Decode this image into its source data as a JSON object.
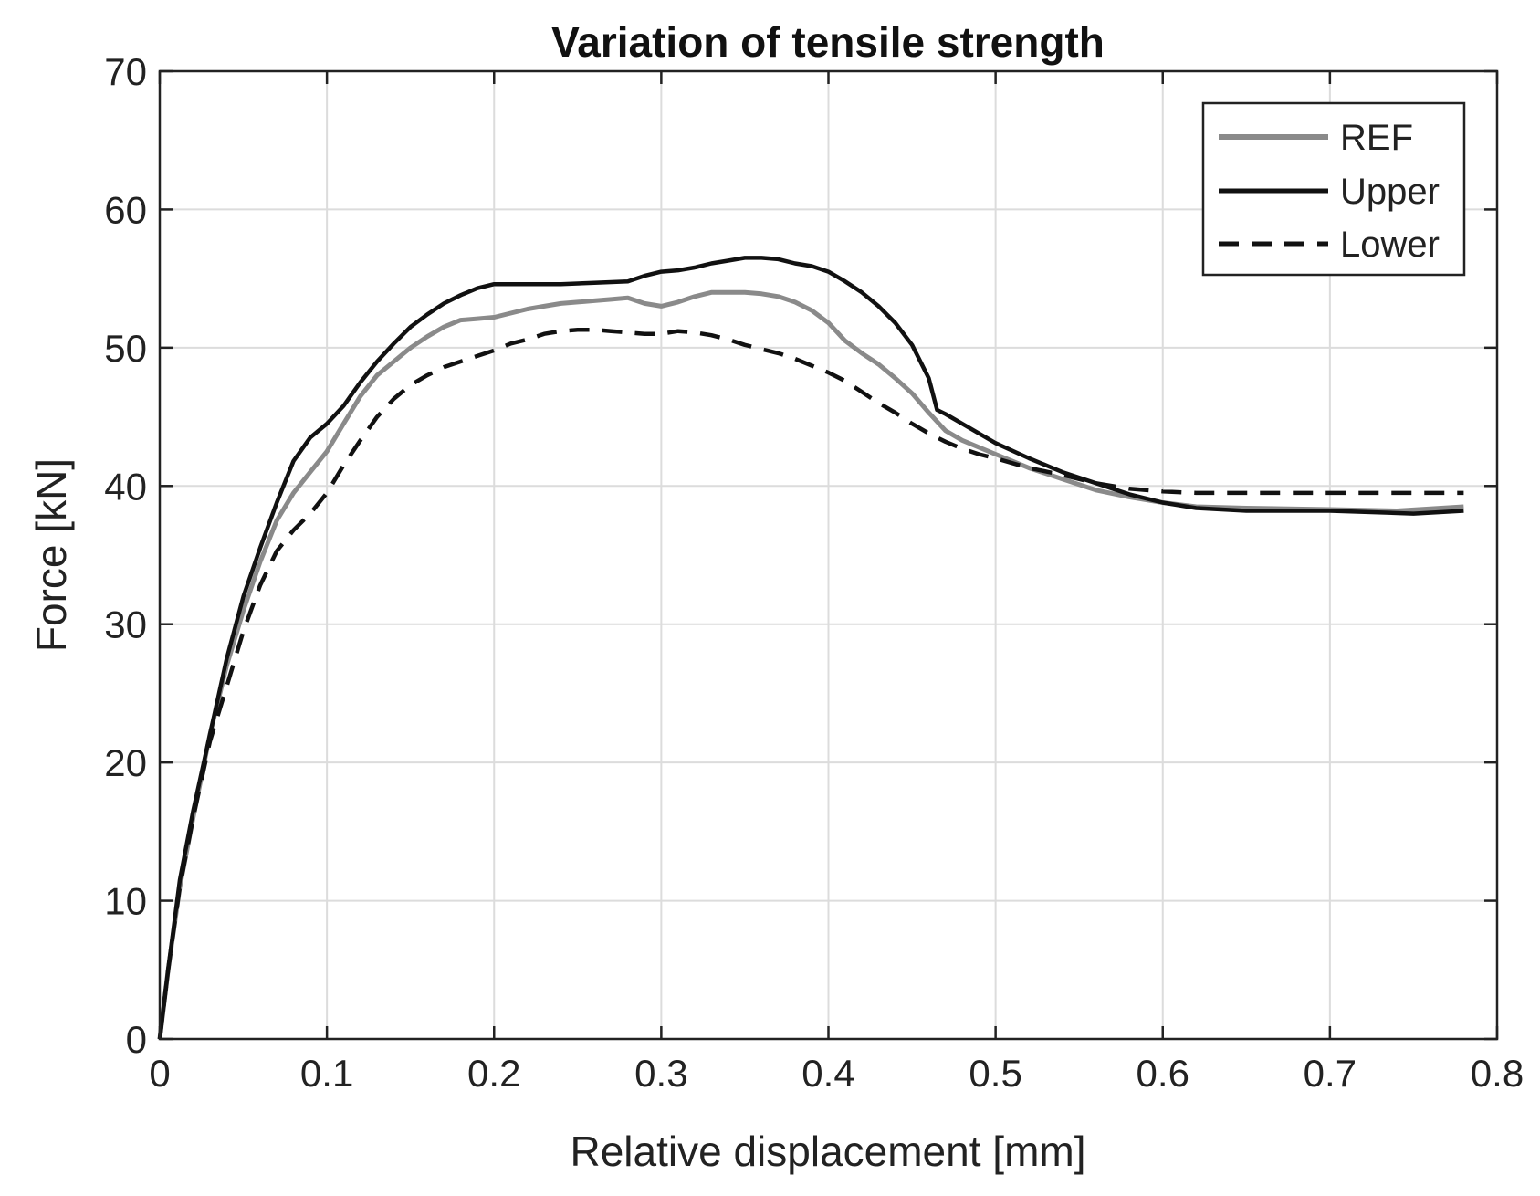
{
  "chart_data": {
    "type": "line",
    "title": "Variation of tensile strength",
    "xlabel": "Relative displacement [mm]",
    "ylabel": "Force [kN]",
    "xlim": [
      0,
      0.8
    ],
    "ylim": [
      0,
      70
    ],
    "x_ticks": [
      0,
      0.1,
      0.2,
      0.3,
      0.4,
      0.5,
      0.6,
      0.7,
      0.8
    ],
    "x_tick_labels": [
      "0",
      "0.1",
      "0.2",
      "0.3",
      "0.4",
      "0.5",
      "0.6",
      "0.7",
      "0.8"
    ],
    "y_ticks": [
      0,
      10,
      20,
      30,
      40,
      50,
      60,
      70
    ],
    "y_tick_labels": [
      "0",
      "10",
      "20",
      "30",
      "40",
      "50",
      "60",
      "70"
    ],
    "grid": true,
    "legend_position": "top-right",
    "series": [
      {
        "name": "REF",
        "color": "#8a8a8a",
        "dash": "solid",
        "points": [
          [
            0,
            0
          ],
          [
            0.005,
            5
          ],
          [
            0.012,
            11
          ],
          [
            0.02,
            16
          ],
          [
            0.03,
            22
          ],
          [
            0.04,
            27
          ],
          [
            0.05,
            31
          ],
          [
            0.06,
            34.5
          ],
          [
            0.07,
            37.5
          ],
          [
            0.08,
            39.5
          ],
          [
            0.09,
            41
          ],
          [
            0.1,
            42.5
          ],
          [
            0.11,
            44.5
          ],
          [
            0.12,
            46.5
          ],
          [
            0.13,
            48
          ],
          [
            0.14,
            49
          ],
          [
            0.15,
            50
          ],
          [
            0.16,
            50.8
          ],
          [
            0.17,
            51.5
          ],
          [
            0.18,
            52
          ],
          [
            0.19,
            52.1
          ],
          [
            0.2,
            52.2
          ],
          [
            0.21,
            52.5
          ],
          [
            0.22,
            52.8
          ],
          [
            0.23,
            53
          ],
          [
            0.24,
            53.2
          ],
          [
            0.25,
            53.3
          ],
          [
            0.26,
            53.4
          ],
          [
            0.27,
            53.5
          ],
          [
            0.28,
            53.6
          ],
          [
            0.29,
            53.2
          ],
          [
            0.3,
            53
          ],
          [
            0.31,
            53.3
          ],
          [
            0.32,
            53.7
          ],
          [
            0.33,
            54
          ],
          [
            0.34,
            54
          ],
          [
            0.35,
            54
          ],
          [
            0.36,
            53.9
          ],
          [
            0.37,
            53.7
          ],
          [
            0.38,
            53.3
          ],
          [
            0.39,
            52.7
          ],
          [
            0.4,
            51.8
          ],
          [
            0.41,
            50.5
          ],
          [
            0.42,
            49.6
          ],
          [
            0.43,
            48.8
          ],
          [
            0.44,
            47.8
          ],
          [
            0.45,
            46.7
          ],
          [
            0.46,
            45.3
          ],
          [
            0.47,
            44
          ],
          [
            0.48,
            43.3
          ],
          [
            0.49,
            42.8
          ],
          [
            0.5,
            42.3
          ],
          [
            0.52,
            41.3
          ],
          [
            0.54,
            40.5
          ],
          [
            0.56,
            39.7
          ],
          [
            0.58,
            39.2
          ],
          [
            0.6,
            38.8
          ],
          [
            0.62,
            38.5
          ],
          [
            0.65,
            38.4
          ],
          [
            0.7,
            38.3
          ],
          [
            0.74,
            38.2
          ],
          [
            0.78,
            38.5
          ]
        ]
      },
      {
        "name": "Upper",
        "color": "#111111",
        "dash": "solid",
        "points": [
          [
            0,
            0
          ],
          [
            0.005,
            5
          ],
          [
            0.012,
            11.5
          ],
          [
            0.02,
            16.5
          ],
          [
            0.03,
            22
          ],
          [
            0.04,
            27.5
          ],
          [
            0.05,
            32
          ],
          [
            0.06,
            35.5
          ],
          [
            0.07,
            38.8
          ],
          [
            0.08,
            41.8
          ],
          [
            0.09,
            43.5
          ],
          [
            0.1,
            44.5
          ],
          [
            0.11,
            45.8
          ],
          [
            0.12,
            47.5
          ],
          [
            0.13,
            49
          ],
          [
            0.14,
            50.3
          ],
          [
            0.15,
            51.5
          ],
          [
            0.16,
            52.4
          ],
          [
            0.17,
            53.2
          ],
          [
            0.18,
            53.8
          ],
          [
            0.19,
            54.3
          ],
          [
            0.2,
            54.6
          ],
          [
            0.22,
            54.6
          ],
          [
            0.24,
            54.6
          ],
          [
            0.26,
            54.7
          ],
          [
            0.28,
            54.8
          ],
          [
            0.29,
            55.2
          ],
          [
            0.3,
            55.5
          ],
          [
            0.31,
            55.6
          ],
          [
            0.32,
            55.8
          ],
          [
            0.33,
            56.1
          ],
          [
            0.34,
            56.3
          ],
          [
            0.35,
            56.5
          ],
          [
            0.36,
            56.5
          ],
          [
            0.37,
            56.4
          ],
          [
            0.38,
            56.1
          ],
          [
            0.39,
            55.9
          ],
          [
            0.4,
            55.5
          ],
          [
            0.41,
            54.8
          ],
          [
            0.42,
            54
          ],
          [
            0.43,
            53
          ],
          [
            0.44,
            51.8
          ],
          [
            0.45,
            50.2
          ],
          [
            0.46,
            47.8
          ],
          [
            0.465,
            45.5
          ],
          [
            0.47,
            45.2
          ],
          [
            0.48,
            44.5
          ],
          [
            0.49,
            43.8
          ],
          [
            0.5,
            43.1
          ],
          [
            0.52,
            42
          ],
          [
            0.54,
            41
          ],
          [
            0.56,
            40.2
          ],
          [
            0.58,
            39.4
          ],
          [
            0.6,
            38.8
          ],
          [
            0.62,
            38.4
          ],
          [
            0.65,
            38.2
          ],
          [
            0.7,
            38.2
          ],
          [
            0.75,
            38
          ],
          [
            0.78,
            38.2
          ]
        ]
      },
      {
        "name": "Lower",
        "color": "#111111",
        "dash": "dashed",
        "points": [
          [
            0,
            0
          ],
          [
            0.005,
            5
          ],
          [
            0.012,
            11
          ],
          [
            0.02,
            16
          ],
          [
            0.03,
            21.5
          ],
          [
            0.04,
            25.5
          ],
          [
            0.05,
            29.5
          ],
          [
            0.06,
            32.8
          ],
          [
            0.07,
            35.3
          ],
          [
            0.08,
            36.8
          ],
          [
            0.09,
            38
          ],
          [
            0.1,
            39.5
          ],
          [
            0.11,
            41.5
          ],
          [
            0.12,
            43.3
          ],
          [
            0.13,
            45
          ],
          [
            0.14,
            46.3
          ],
          [
            0.15,
            47.3
          ],
          [
            0.16,
            48
          ],
          [
            0.17,
            48.6
          ],
          [
            0.18,
            49
          ],
          [
            0.19,
            49.4
          ],
          [
            0.2,
            49.8
          ],
          [
            0.21,
            50.3
          ],
          [
            0.22,
            50.6
          ],
          [
            0.23,
            51
          ],
          [
            0.24,
            51.2
          ],
          [
            0.25,
            51.3
          ],
          [
            0.26,
            51.3
          ],
          [
            0.27,
            51.2
          ],
          [
            0.28,
            51.1
          ],
          [
            0.29,
            51
          ],
          [
            0.3,
            51
          ],
          [
            0.31,
            51.2
          ],
          [
            0.32,
            51.1
          ],
          [
            0.33,
            50.9
          ],
          [
            0.34,
            50.6
          ],
          [
            0.35,
            50.2
          ],
          [
            0.36,
            49.9
          ],
          [
            0.37,
            49.6
          ],
          [
            0.38,
            49.2
          ],
          [
            0.39,
            48.7
          ],
          [
            0.4,
            48.2
          ],
          [
            0.41,
            47.6
          ],
          [
            0.42,
            46.8
          ],
          [
            0.43,
            46
          ],
          [
            0.44,
            45.3
          ],
          [
            0.45,
            44.5
          ],
          [
            0.46,
            43.8
          ],
          [
            0.47,
            43.2
          ],
          [
            0.48,
            42.7
          ],
          [
            0.49,
            42.3
          ],
          [
            0.5,
            42
          ],
          [
            0.52,
            41.3
          ],
          [
            0.54,
            40.8
          ],
          [
            0.56,
            40.2
          ],
          [
            0.58,
            39.8
          ],
          [
            0.6,
            39.6
          ],
          [
            0.62,
            39.5
          ],
          [
            0.7,
            39.5
          ],
          [
            0.78,
            39.5
          ]
        ]
      }
    ]
  }
}
